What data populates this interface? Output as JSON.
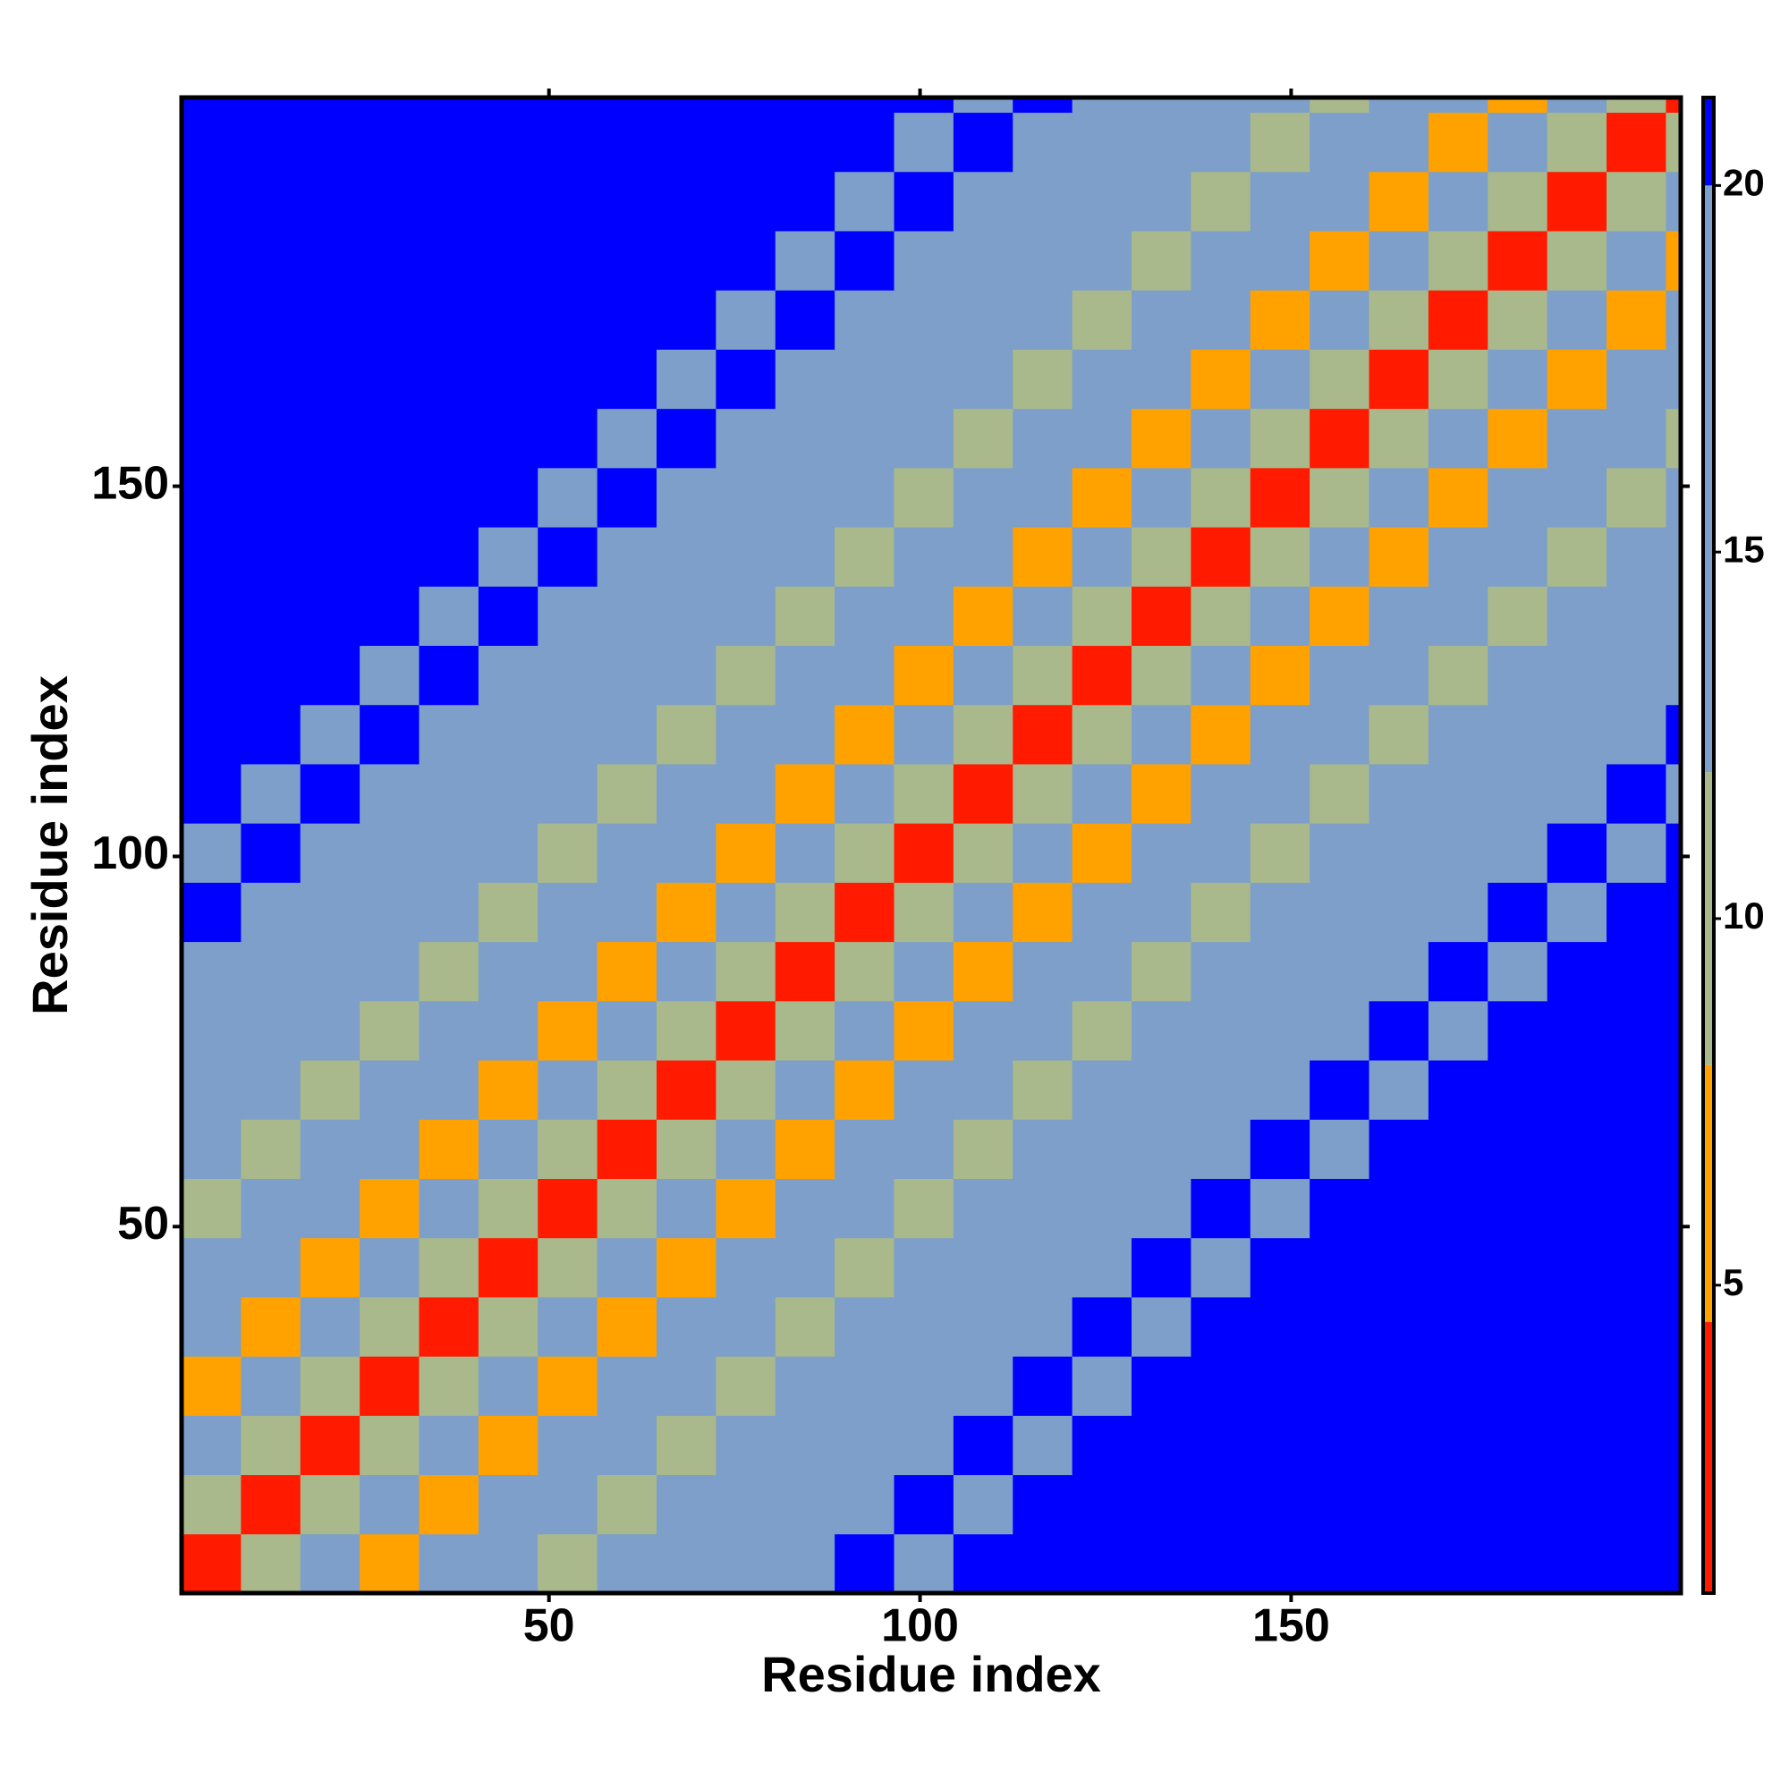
{
  "chart_data": {
    "type": "heatmap",
    "x_label": "Residue index",
    "y_label": "Residue index",
    "xlim": [
      0.5,
      202.5
    ],
    "ylim": [
      0.5,
      202.5
    ],
    "xticks": [
      50,
      100,
      150
    ],
    "yticks": [
      50,
      100,
      150
    ],
    "xbins": [
      0.5,
      8.5,
      16.5,
      24.5,
      32.5,
      40.5,
      48.5,
      56.5,
      64.5,
      72.5,
      80.5,
      88.5,
      96.5,
      104.5,
      112.5,
      120.5,
      128.5,
      136.5,
      144.5,
      152.5,
      160.5,
      168.5,
      176.5,
      184.5,
      192.5,
      200.5,
      202.5
    ],
    "ybins": [
      0.5,
      8.5,
      16.5,
      24.5,
      32.5,
      40.5,
      48.5,
      56.5,
      64.5,
      72.5,
      80.5,
      88.5,
      96.5,
      104.5,
      112.5,
      120.5,
      128.5,
      136.5,
      144.5,
      152.5,
      160.5,
      168.5,
      176.5,
      184.5,
      192.5,
      200.5,
      202.5
    ],
    "z": [
      [
        3,
        11,
        16,
        7,
        13,
        18,
        10,
        14,
        19,
        12,
        15,
        21,
        14,
        22,
        25,
        25,
        25,
        25,
        25,
        25,
        25,
        25,
        25,
        25,
        25,
        25
      ],
      [
        11,
        3,
        11,
        16,
        7,
        13,
        18,
        10,
        14,
        19,
        12,
        15,
        21,
        14,
        22,
        25,
        25,
        25,
        25,
        25,
        25,
        25,
        25,
        25,
        25,
        25
      ],
      [
        16,
        11,
        3,
        11,
        16,
        7,
        13,
        18,
        10,
        14,
        19,
        12,
        15,
        21,
        14,
        22,
        25,
        25,
        25,
        25,
        25,
        25,
        25,
        25,
        25,
        25
      ],
      [
        7,
        16,
        11,
        3,
        11,
        16,
        7,
        13,
        18,
        10,
        14,
        19,
        12,
        15,
        21,
        14,
        22,
        25,
        25,
        25,
        25,
        25,
        25,
        25,
        25,
        25
      ],
      [
        13,
        7,
        16,
        11,
        3,
        11,
        16,
        7,
        13,
        18,
        10,
        14,
        19,
        12,
        15,
        21,
        14,
        22,
        25,
        25,
        25,
        25,
        25,
        25,
        25,
        25
      ],
      [
        18,
        13,
        7,
        16,
        11,
        3,
        11,
        16,
        7,
        13,
        18,
        10,
        14,
        19,
        12,
        15,
        21,
        14,
        22,
        25,
        25,
        25,
        25,
        25,
        25,
        25
      ],
      [
        10,
        18,
        13,
        7,
        16,
        11,
        3,
        11,
        16,
        7,
        13,
        18,
        10,
        14,
        19,
        12,
        15,
        21,
        14,
        22,
        25,
        25,
        25,
        25,
        25,
        25
      ],
      [
        14,
        10,
        18,
        13,
        7,
        16,
        11,
        3,
        11,
        16,
        7,
        13,
        18,
        10,
        14,
        19,
        12,
        15,
        21,
        14,
        22,
        25,
        25,
        25,
        25,
        25
      ],
      [
        19,
        14,
        10,
        18,
        13,
        7,
        16,
        11,
        3,
        11,
        16,
        7,
        13,
        18,
        10,
        14,
        19,
        12,
        15,
        21,
        14,
        22,
        25,
        25,
        25,
        25
      ],
      [
        12,
        19,
        14,
        10,
        18,
        13,
        7,
        16,
        11,
        3,
        11,
        16,
        7,
        13,
        18,
        10,
        14,
        19,
        12,
        15,
        21,
        14,
        22,
        25,
        25,
        25
      ],
      [
        15,
        12,
        19,
        14,
        10,
        18,
        13,
        7,
        16,
        11,
        3,
        11,
        16,
        7,
        13,
        18,
        10,
        14,
        19,
        12,
        15,
        21,
        14,
        22,
        25,
        25
      ],
      [
        21,
        15,
        12,
        19,
        14,
        10,
        18,
        13,
        7,
        16,
        11,
        3,
        11,
        16,
        7,
        13,
        18,
        10,
        14,
        19,
        12,
        15,
        21,
        14,
        22,
        25
      ],
      [
        14,
        21,
        15,
        12,
        19,
        14,
        10,
        18,
        13,
        7,
        16,
        11,
        3,
        11,
        16,
        7,
        13,
        18,
        10,
        14,
        19,
        12,
        15,
        21,
        14,
        22
      ],
      [
        22,
        14,
        21,
        15,
        12,
        19,
        14,
        10,
        18,
        13,
        7,
        16,
        11,
        3,
        11,
        16,
        7,
        13,
        18,
        10,
        14,
        19,
        12,
        15,
        21,
        14
      ],
      [
        25,
        22,
        14,
        21,
        15,
        12,
        19,
        14,
        10,
        18,
        13,
        7,
        16,
        11,
        3,
        11,
        16,
        7,
        13,
        18,
        10,
        14,
        19,
        12,
        15,
        21
      ],
      [
        25,
        25,
        22,
        14,
        21,
        15,
        12,
        19,
        14,
        10,
        18,
        13,
        7,
        16,
        11,
        3,
        11,
        16,
        7,
        13,
        18,
        10,
        14,
        19,
        12,
        15
      ],
      [
        25,
        25,
        25,
        22,
        14,
        21,
        15,
        12,
        19,
        14,
        10,
        18,
        13,
        7,
        16,
        11,
        3,
        11,
        16,
        7,
        13,
        18,
        10,
        14,
        19,
        12
      ],
      [
        25,
        25,
        25,
        25,
        22,
        14,
        21,
        15,
        12,
        19,
        14,
        10,
        18,
        13,
        7,
        16,
        11,
        3,
        11,
        16,
        7,
        13,
        18,
        10,
        14,
        19
      ],
      [
        25,
        25,
        25,
        25,
        25,
        22,
        14,
        21,
        15,
        12,
        19,
        14,
        10,
        18,
        13,
        7,
        16,
        11,
        3,
        11,
        16,
        7,
        13,
        18,
        10,
        14
      ],
      [
        25,
        25,
        25,
        25,
        25,
        25,
        22,
        14,
        21,
        15,
        12,
        19,
        14,
        10,
        18,
        13,
        7,
        16,
        11,
        3,
        11,
        16,
        7,
        13,
        18,
        10
      ],
      [
        25,
        25,
        25,
        25,
        25,
        25,
        25,
        22,
        14,
        21,
        15,
        12,
        19,
        14,
        10,
        18,
        13,
        7,
        16,
        11,
        3,
        11,
        16,
        7,
        13,
        18
      ],
      [
        25,
        25,
        25,
        25,
        25,
        25,
        25,
        25,
        22,
        14,
        21,
        15,
        12,
        19,
        14,
        10,
        18,
        13,
        7,
        16,
        11,
        3,
        11,
        16,
        7,
        13
      ],
      [
        25,
        25,
        25,
        25,
        25,
        25,
        25,
        25,
        25,
        22,
        14,
        21,
        15,
        12,
        19,
        14,
        10,
        18,
        13,
        7,
        16,
        11,
        3,
        11,
        16,
        7
      ],
      [
        25,
        25,
        25,
        25,
        25,
        25,
        25,
        25,
        25,
        25,
        22,
        14,
        21,
        15,
        12,
        19,
        14,
        10,
        18,
        13,
        7,
        16,
        11,
        3,
        11,
        16
      ],
      [
        25,
        25,
        25,
        25,
        25,
        25,
        25,
        25,
        25,
        25,
        25,
        22,
        14,
        21,
        15,
        12,
        19,
        14,
        10,
        18,
        13,
        7,
        16,
        11,
        3,
        11
      ],
      [
        25,
        25,
        25,
        25,
        25,
        25,
        25,
        25,
        25,
        25,
        25,
        25,
        22,
        14,
        21,
        15,
        12,
        19,
        14,
        10,
        18,
        13,
        7,
        16,
        11,
        3
      ]
    ],
    "colorbar": {
      "lim": [
        0.8,
        21.2
      ],
      "ticks": [
        5,
        10,
        15,
        20
      ]
    },
    "colorscale": [
      {
        "max": 4.5,
        "color": "#ff1a00"
      },
      {
        "max": 8,
        "color": "#ffa200"
      },
      {
        "max": 12,
        "color": "#a9b98c"
      },
      {
        "max": 20,
        "color": "#7d9fc9"
      },
      {
        "max": 1000,
        "color": "#0000ff"
      }
    ]
  }
}
